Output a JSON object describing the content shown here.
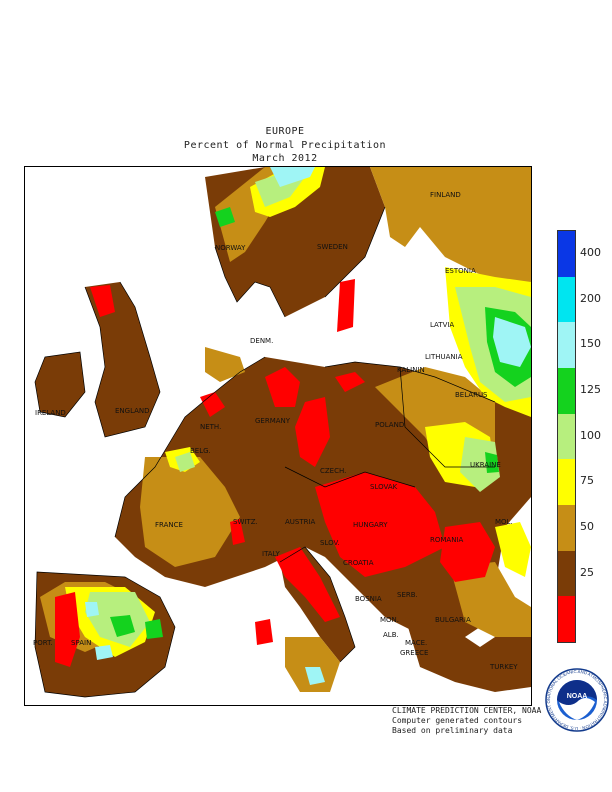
{
  "header": {
    "region": "EUROPE",
    "subtitle": "Percent of Normal Precipitation",
    "period": "March 2012"
  },
  "legend": {
    "bins": [
      {
        "label": "400",
        "color": "#0a37e6"
      },
      {
        "label": "200",
        "color": "#00e5f0"
      },
      {
        "label": "150",
        "color": "#9ff5f5"
      },
      {
        "label": "125",
        "color": "#14d21e"
      },
      {
        "label": "100",
        "color": "#b7ef7e"
      },
      {
        "label": "75",
        "color": "#ffff00"
      },
      {
        "label": "50",
        "color": "#c68e16"
      },
      {
        "label": "25",
        "color": "#7a3c07"
      },
      {
        "label": "",
        "color": "#ff0000"
      }
    ]
  },
  "map_labels": {
    "finland": "FINLAND",
    "norway": "NORWAY",
    "sweden": "SWEDEN",
    "estonia": "ESTONIA",
    "latvia": "LATVIA",
    "lithuania": "LITHUANIA",
    "kalinin": "KALININ",
    "belarus": "BELARUS",
    "ireland": "IRELAND",
    "england": "ENGLAND",
    "denmark": "DENM.",
    "germany": "GERMANY",
    "poland": "POLAND",
    "ukraine": "UKRAINE",
    "czech": "CZECH.",
    "slovak": "SLOVAK",
    "neth": "NETH.",
    "belg": "BELG.",
    "france": "FRANCE",
    "switz": "SWITZ.",
    "austria": "AUSTRIA",
    "hungary": "HUNGARY",
    "moldova": "MOL.",
    "romania": "ROMANIA",
    "slov": "SLOV.",
    "croatia": "CROATIA",
    "bosnia": "BOSNIA",
    "serb": "SERB.",
    "italy": "ITALY",
    "bulgaria": "BULGARIA",
    "mon": "MON.",
    "mace": "MACE.",
    "port": "PORT.",
    "spain": "SPAIN",
    "alb": "ALB.",
    "greece": "GREECE",
    "turkey": "TURKEY"
  },
  "credits": {
    "line1": "CLIMATE PREDICTION CENTER, NOAA",
    "line2": "Computer generated contours",
    "line3": "Based on preliminary data"
  },
  "logo": {
    "text": "NOAA",
    "ring": "NATIONAL OCEANIC AND ATMOSPHERIC ADMINISTRATION · U.S. DEPARTMENT OF COMMERCE"
  }
}
